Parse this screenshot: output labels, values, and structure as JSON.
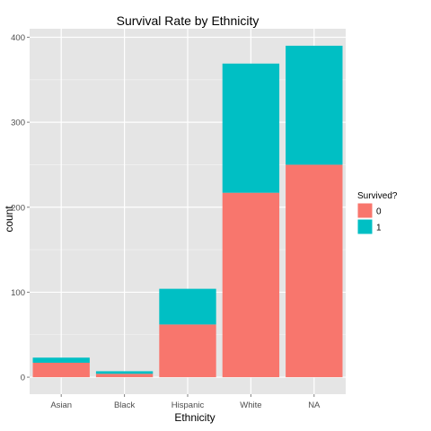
{
  "chart_data": {
    "type": "bar",
    "stacked": true,
    "title": "Survival Rate by Ethnicity",
    "xlabel": "Ethnicity",
    "ylabel": "count",
    "categories": [
      "Asian",
      "Black",
      "Hispanic",
      "White",
      "NA"
    ],
    "series": [
      {
        "name": "0",
        "color": "#F8766D",
        "values": [
          17,
          4,
          62,
          217,
          250
        ]
      },
      {
        "name": "1",
        "color": "#00BFC4",
        "values": [
          6,
          3,
          42,
          152,
          140
        ]
      }
    ],
    "ylim": [
      -20,
      410
    ],
    "yticks": [
      0,
      100,
      200,
      300,
      400
    ],
    "grid": true,
    "legend": {
      "title": "Survived?",
      "position": "right"
    },
    "panel_background": "#E5E5E5",
    "grid_color": "#FFFFFF"
  }
}
